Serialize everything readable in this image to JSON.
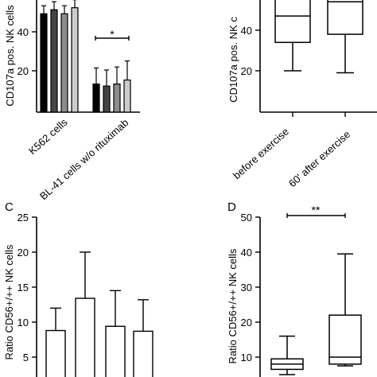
{
  "chart_data": [
    {
      "panel": "",
      "type": "bar",
      "ylabel": "CD107a pos. NK cells",
      "ylim": [
        0,
        60
      ],
      "yticks": [
        20,
        40
      ],
      "categories": [
        "K562 cells",
        "BL-41 cells w/o rituximab"
      ],
      "series": [
        {
          "color": "#000000",
          "values": [
            49,
            14
          ],
          "errors": [
            4,
            8
          ]
        },
        {
          "color": "#444444",
          "values": [
            51,
            13
          ],
          "errors": [
            4,
            8
          ]
        },
        {
          "color": "#8c8c8c",
          "values": [
            49,
            14
          ],
          "errors": [
            4,
            8.5
          ]
        },
        {
          "color": "#cccccc",
          "values": [
            52,
            16
          ],
          "errors": [
            4,
            9.5
          ]
        }
      ],
      "significance": [
        {
          "group": 1,
          "label": "*"
        }
      ]
    },
    {
      "panel": "",
      "type": "box",
      "ylabel": "CD107a pos. NK c",
      "ylim": [
        0,
        60
      ],
      "yticks": [
        20,
        40
      ],
      "categories": [
        "before exercise",
        "60' after exercise"
      ],
      "boxes": [
        {
          "whisker_low": 20,
          "q1": 34,
          "median": 47,
          "q3": 60,
          "whisker_high": 60
        },
        {
          "whisker_low": 19,
          "q1": 38,
          "median": 54,
          "q3": 60,
          "whisker_high": 60
        }
      ]
    },
    {
      "panel": "C",
      "type": "bar",
      "ylabel": "Ratio CD56+/++ NK cells",
      "ylim": [
        0,
        25
      ],
      "yticks": [
        5,
        10,
        15,
        20,
        25
      ],
      "series": [
        {
          "color": "#ffffff",
          "values": [
            8.8,
            13.4,
            9.4,
            8.7
          ],
          "errors": [
            3.2,
            6.6,
            5.1,
            4.5
          ]
        }
      ]
    },
    {
      "panel": "D",
      "type": "box",
      "ylabel": "Ratio CD56+/++ NK cells",
      "ylim": [
        0,
        50
      ],
      "yticks": [
        10,
        20,
        30,
        40,
        50
      ],
      "boxes": [
        {
          "whisker_low": 5,
          "q1": 6.5,
          "median": 8,
          "q3": 9.5,
          "whisker_high": 16
        },
        {
          "whisker_low": 7.5,
          "q1": 8,
          "median": 10,
          "q3": 22,
          "whisker_high": 39.5
        }
      ],
      "significance": [
        {
          "from": 0,
          "to": 1,
          "label": "**"
        }
      ]
    }
  ]
}
